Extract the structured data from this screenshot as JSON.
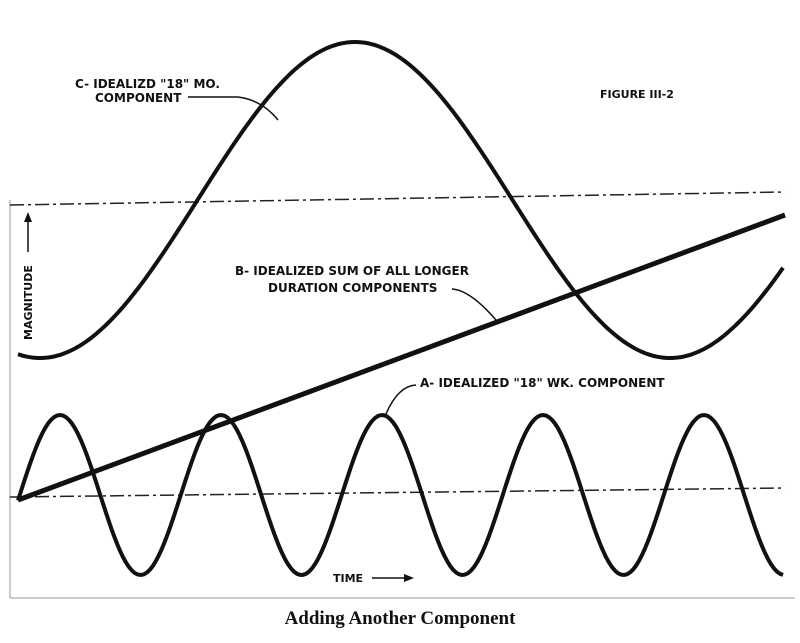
{
  "figure": {
    "label": "FIGURE III-2",
    "curve_c_label": [
      "C- IDEALIZD \"18\" MO.",
      "COMPONENT"
    ],
    "curve_b_label": [
      "B- IDEALIZED SUM OF ALL LONGER",
      "DURATION COMPONENTS"
    ],
    "curve_a_label": "A- IDEALIZED \"18\" WK. COMPONENT",
    "y_axis_label": "MAGNITUDE",
    "x_axis_label": "TIME"
  },
  "caption": "Adding Another Component"
}
